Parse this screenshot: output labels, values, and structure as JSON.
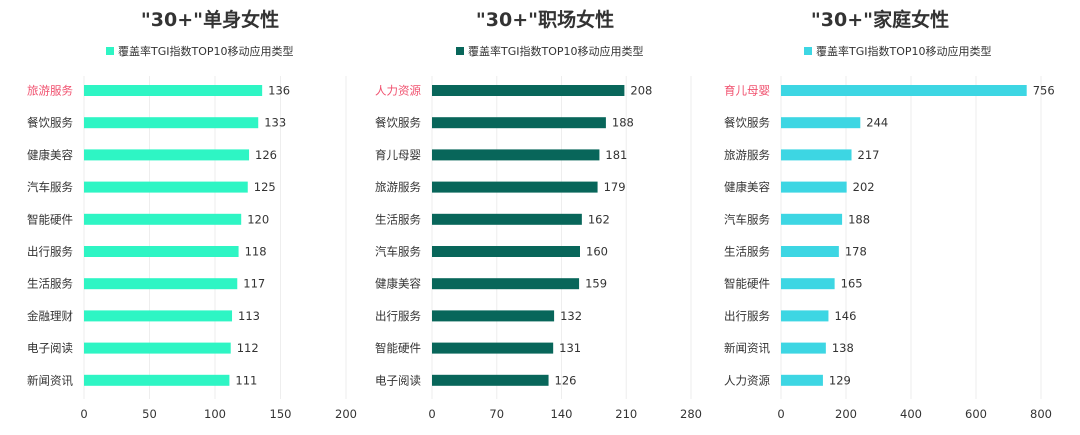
{
  "chart_data": [
    {
      "type": "bar",
      "orientation": "horizontal",
      "title": "\"30+\"单身女性",
      "legend": "覆盖率TGI指数TOP10移动应用类型",
      "legend_position": "top",
      "color": "#2ef5c4",
      "highlight_color": "#f0506e",
      "highlight_index": 0,
      "categories": [
        "旅游服务",
        "餐饮服务",
        "健康美容",
        "汽车服务",
        "智能硬件",
        "出行服务",
        "生活服务",
        "金融理财",
        "电子阅读",
        "新闻资讯"
      ],
      "values": [
        136,
        133,
        126,
        125,
        120,
        118,
        117,
        113,
        112,
        111
      ],
      "xlim": [
        0,
        200
      ],
      "xticks": [
        0,
        50,
        100,
        150,
        200
      ],
      "grid": true
    },
    {
      "type": "bar",
      "orientation": "horizontal",
      "title": "\"30+\"职场女性",
      "legend": "覆盖率TGI指数TOP10移动应用类型",
      "legend_position": "top",
      "color": "#08665a",
      "highlight_color": "#f0506e",
      "highlight_index": 0,
      "categories": [
        "人力资源",
        "餐饮服务",
        "育儿母婴",
        "旅游服务",
        "生活服务",
        "汽车服务",
        "健康美容",
        "出行服务",
        "智能硬件",
        "电子阅读"
      ],
      "values": [
        208,
        188,
        181,
        179,
        162,
        160,
        159,
        132,
        131,
        126
      ],
      "xlim": [
        0,
        280
      ],
      "xticks": [
        0,
        70,
        140,
        210,
        280
      ],
      "grid": true
    },
    {
      "type": "bar",
      "orientation": "horizontal",
      "title": "\"30+\"家庭女性",
      "legend": "覆盖率TGI指数TOP10移动应用类型",
      "legend_position": "top",
      "color": "#3dd6e3",
      "highlight_color": "#f0506e",
      "highlight_index": 0,
      "categories": [
        "育儿母婴",
        "餐饮服务",
        "旅游服务",
        "健康美容",
        "汽车服务",
        "生活服务",
        "智能硬件",
        "出行服务",
        "新闻资讯",
        "人力资源"
      ],
      "values": [
        756,
        244,
        217,
        202,
        188,
        178,
        165,
        146,
        138,
        129
      ],
      "xlim": [
        0,
        800
      ],
      "xticks": [
        0,
        200,
        400,
        600,
        800
      ],
      "grid": true
    }
  ]
}
